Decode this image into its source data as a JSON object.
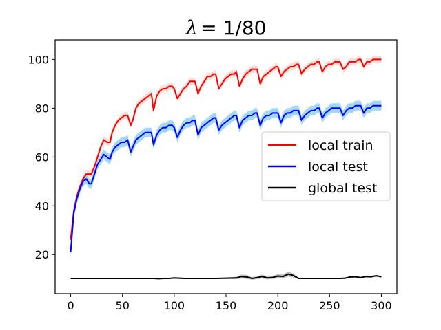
{
  "chart_data": {
    "type": "line",
    "title": "λ = 1/80",
    "title_symbol": "λ",
    "title_rest": "= 1/80",
    "xlabel": "",
    "ylabel": "",
    "xlim": [
      -15,
      315
    ],
    "ylim": [
      4,
      108
    ],
    "xticks": [
      0,
      50,
      100,
      150,
      200,
      250,
      300
    ],
    "yticks": [
      20,
      40,
      60,
      80,
      100
    ],
    "legend_position": "center-right",
    "series": [
      {
        "name": "local train",
        "color": "#ff0000",
        "band_color": "#ffd0c8",
        "x": [
          0,
          3,
          6,
          9,
          12,
          15,
          18,
          20,
          23,
          26,
          29,
          32,
          35,
          38,
          40,
          43,
          46,
          49,
          52,
          55,
          58,
          60,
          63,
          66,
          69,
          72,
          75,
          78,
          80,
          83,
          86,
          89,
          92,
          95,
          98,
          100,
          103,
          106,
          109,
          112,
          115,
          118,
          120,
          123,
          126,
          129,
          132,
          135,
          138,
          140,
          143,
          146,
          149,
          152,
          155,
          158,
          160,
          163,
          166,
          169,
          172,
          175,
          178,
          180,
          183,
          186,
          189,
          192,
          195,
          198,
          200,
          203,
          206,
          209,
          212,
          215,
          218,
          220,
          223,
          226,
          229,
          232,
          235,
          238,
          240,
          243,
          246,
          249,
          252,
          255,
          258,
          260,
          263,
          266,
          269,
          272,
          275,
          278,
          280,
          283,
          286,
          289,
          292,
          295,
          298,
          300
        ],
        "y": [
          26,
          38,
          44,
          48,
          51,
          53,
          53,
          53,
          56,
          60,
          64,
          67,
          66,
          66,
          70,
          73,
          75,
          76,
          77,
          77,
          73,
          75,
          80,
          82,
          83,
          84,
          85,
          86,
          79,
          85,
          87,
          88,
          88,
          89,
          89,
          88,
          84,
          86,
          88,
          89,
          91,
          91,
          91,
          86,
          89,
          91,
          93,
          93,
          94,
          94,
          88,
          90,
          92,
          93,
          94,
          94,
          95,
          89,
          92,
          94,
          95,
          96,
          96,
          96,
          90,
          93,
          94,
          95,
          96,
          97,
          97,
          93,
          95,
          96,
          97,
          97,
          98,
          98,
          94,
          96,
          97,
          98,
          98,
          99,
          99,
          95,
          97,
          98,
          98,
          99,
          99,
          99,
          96,
          97,
          99,
          99,
          99,
          100,
          100,
          97,
          99,
          99,
          100,
          100,
          100,
          100
        ],
        "band": [
          1.5,
          1.5,
          1.5,
          1.5,
          1.5,
          1.5,
          1.5,
          1.5,
          1.5,
          1.5,
          1.5,
          1.5,
          1.5,
          1.5,
          1.5,
          1.5,
          1.5,
          1.5,
          1.5,
          1.5,
          1.5,
          1.5,
          1.5,
          1.5,
          1.5,
          1.5,
          1.5,
          1.5,
          1.5,
          1.5,
          1.5,
          1.5,
          1.5,
          1.5,
          1.5,
          1.5,
          1.5,
          1.5,
          1.5,
          1.5,
          1.5,
          1.5,
          1.5,
          1.5,
          1.5,
          1.5,
          1.5,
          1.5,
          1.5,
          1.5,
          1.5,
          1.5,
          1.5,
          1.5,
          1.5,
          1.5,
          1.5,
          1.5,
          1.5,
          1.5,
          1.5,
          1.5,
          1.5,
          1.5,
          1.5,
          1.5,
          1.5,
          1.5,
          1.5,
          1.5,
          1.5,
          1.5,
          1.5,
          1.5,
          1.5,
          1.5,
          1.5,
          1.5,
          1.5,
          1.5,
          1.5,
          1.5,
          1.5,
          1.5,
          1.5,
          1.5,
          1.5,
          1.5,
          1.5,
          1.5,
          1.5,
          1.5,
          1.5,
          1.5,
          1.5,
          1.5,
          1.5,
          1.5,
          1.5,
          1.5,
          1.5,
          1.5,
          1.5,
          1.5,
          1.5,
          1.5
        ]
      },
      {
        "name": "local test",
        "color": "#0000ff",
        "band_color": "#87cefa",
        "x": [
          0,
          3,
          6,
          9,
          12,
          15,
          18,
          20,
          23,
          26,
          29,
          32,
          35,
          38,
          40,
          43,
          46,
          49,
          52,
          55,
          58,
          60,
          63,
          66,
          69,
          72,
          75,
          78,
          80,
          83,
          86,
          89,
          92,
          95,
          98,
          100,
          103,
          106,
          109,
          112,
          115,
          118,
          120,
          123,
          126,
          129,
          132,
          135,
          138,
          140,
          143,
          146,
          149,
          152,
          155,
          158,
          160,
          163,
          166,
          169,
          172,
          175,
          178,
          180,
          183,
          186,
          189,
          192,
          195,
          198,
          200,
          203,
          206,
          209,
          212,
          215,
          218,
          220,
          223,
          226,
          229,
          232,
          235,
          238,
          240,
          243,
          246,
          249,
          252,
          255,
          258,
          260,
          263,
          266,
          269,
          272,
          275,
          278,
          280,
          283,
          286,
          289,
          292,
          295,
          298,
          300
        ],
        "y": [
          21,
          37,
          43,
          47,
          50,
          51,
          49,
          49,
          53,
          57,
          59,
          61,
          60,
          59,
          62,
          64,
          65,
          66,
          66,
          67,
          62,
          64,
          67,
          68,
          69,
          70,
          70,
          70,
          65,
          69,
          71,
          72,
          72,
          73,
          73,
          72,
          68,
          71,
          73,
          74,
          74,
          75,
          75,
          69,
          72,
          73,
          74,
          75,
          76,
          76,
          71,
          73,
          74,
          75,
          76,
          77,
          77,
          72,
          75,
          76,
          77,
          77,
          78,
          78,
          73,
          76,
          77,
          77,
          78,
          78,
          78,
          74,
          77,
          78,
          78,
          79,
          79,
          79,
          75,
          77,
          78,
          79,
          79,
          80,
          80,
          76,
          78,
          79,
          80,
          80,
          80,
          80,
          77,
          79,
          80,
          80,
          81,
          81,
          81,
          78,
          80,
          80,
          81,
          81,
          81,
          81
        ],
        "band": [
          2.5,
          2.5,
          2,
          2,
          2,
          2,
          2,
          2,
          2,
          2,
          2,
          2,
          2,
          2,
          2,
          2,
          2,
          2,
          2,
          2,
          2,
          2,
          2,
          2,
          2,
          2,
          2,
          2,
          2,
          2,
          2,
          2,
          2,
          2,
          2,
          2,
          2,
          2,
          2,
          2,
          2,
          2,
          2,
          2,
          2,
          2,
          2,
          2,
          2,
          2,
          2,
          2,
          2,
          2,
          2,
          2,
          2,
          2,
          2,
          2,
          2,
          2,
          2,
          2,
          2,
          2,
          2,
          2,
          2,
          2,
          2,
          2,
          2,
          2,
          2,
          2,
          2,
          2,
          2,
          2,
          2,
          2,
          2,
          2,
          2,
          2,
          2,
          2,
          2,
          2,
          2,
          2,
          2,
          2,
          2,
          2,
          2,
          2,
          2,
          2,
          2,
          2,
          2,
          2,
          2,
          2
        ]
      },
      {
        "name": "global test",
        "color": "#000000",
        "band_color": "#b0b0b0",
        "x": [
          0,
          10,
          20,
          30,
          40,
          50,
          60,
          70,
          80,
          85,
          90,
          95,
          100,
          105,
          110,
          120,
          130,
          140,
          150,
          160,
          165,
          170,
          175,
          180,
          185,
          190,
          195,
          200,
          205,
          210,
          212,
          215,
          220,
          230,
          240,
          250,
          260,
          265,
          270,
          275,
          280,
          285,
          290,
          295,
          300
        ],
        "y": [
          10.2,
          10.2,
          10.2,
          10.2,
          10.2,
          10.2,
          10.2,
          10.2,
          10.2,
          10.1,
          10.2,
          10.2,
          10.4,
          10.3,
          10.2,
          10.2,
          10.2,
          10.2,
          10.3,
          10.4,
          11.0,
          10.8,
          10.2,
          10.5,
          11.0,
          10.4,
          10.6,
          11.2,
          11.0,
          12.0,
          11.8,
          11.4,
          10.2,
          10.2,
          10.2,
          10.2,
          10.2,
          10.3,
          10.8,
          10.9,
          10.5,
          11.0,
          10.9,
          11.3,
          10.9
        ],
        "band": [
          0.2,
          0.2,
          0.2,
          0.2,
          0.2,
          0.2,
          0.2,
          0.2,
          0.2,
          0.2,
          0.2,
          0.2,
          0.3,
          0.3,
          0.2,
          0.2,
          0.2,
          0.2,
          0.3,
          0.5,
          0.8,
          0.8,
          0.5,
          0.6,
          0.8,
          0.6,
          0.6,
          0.8,
          0.8,
          1.0,
          1.0,
          0.8,
          0.3,
          0.2,
          0.2,
          0.2,
          0.2,
          0.3,
          0.4,
          0.4,
          0.4,
          0.4,
          0.4,
          0.4,
          0.4
        ]
      }
    ]
  }
}
